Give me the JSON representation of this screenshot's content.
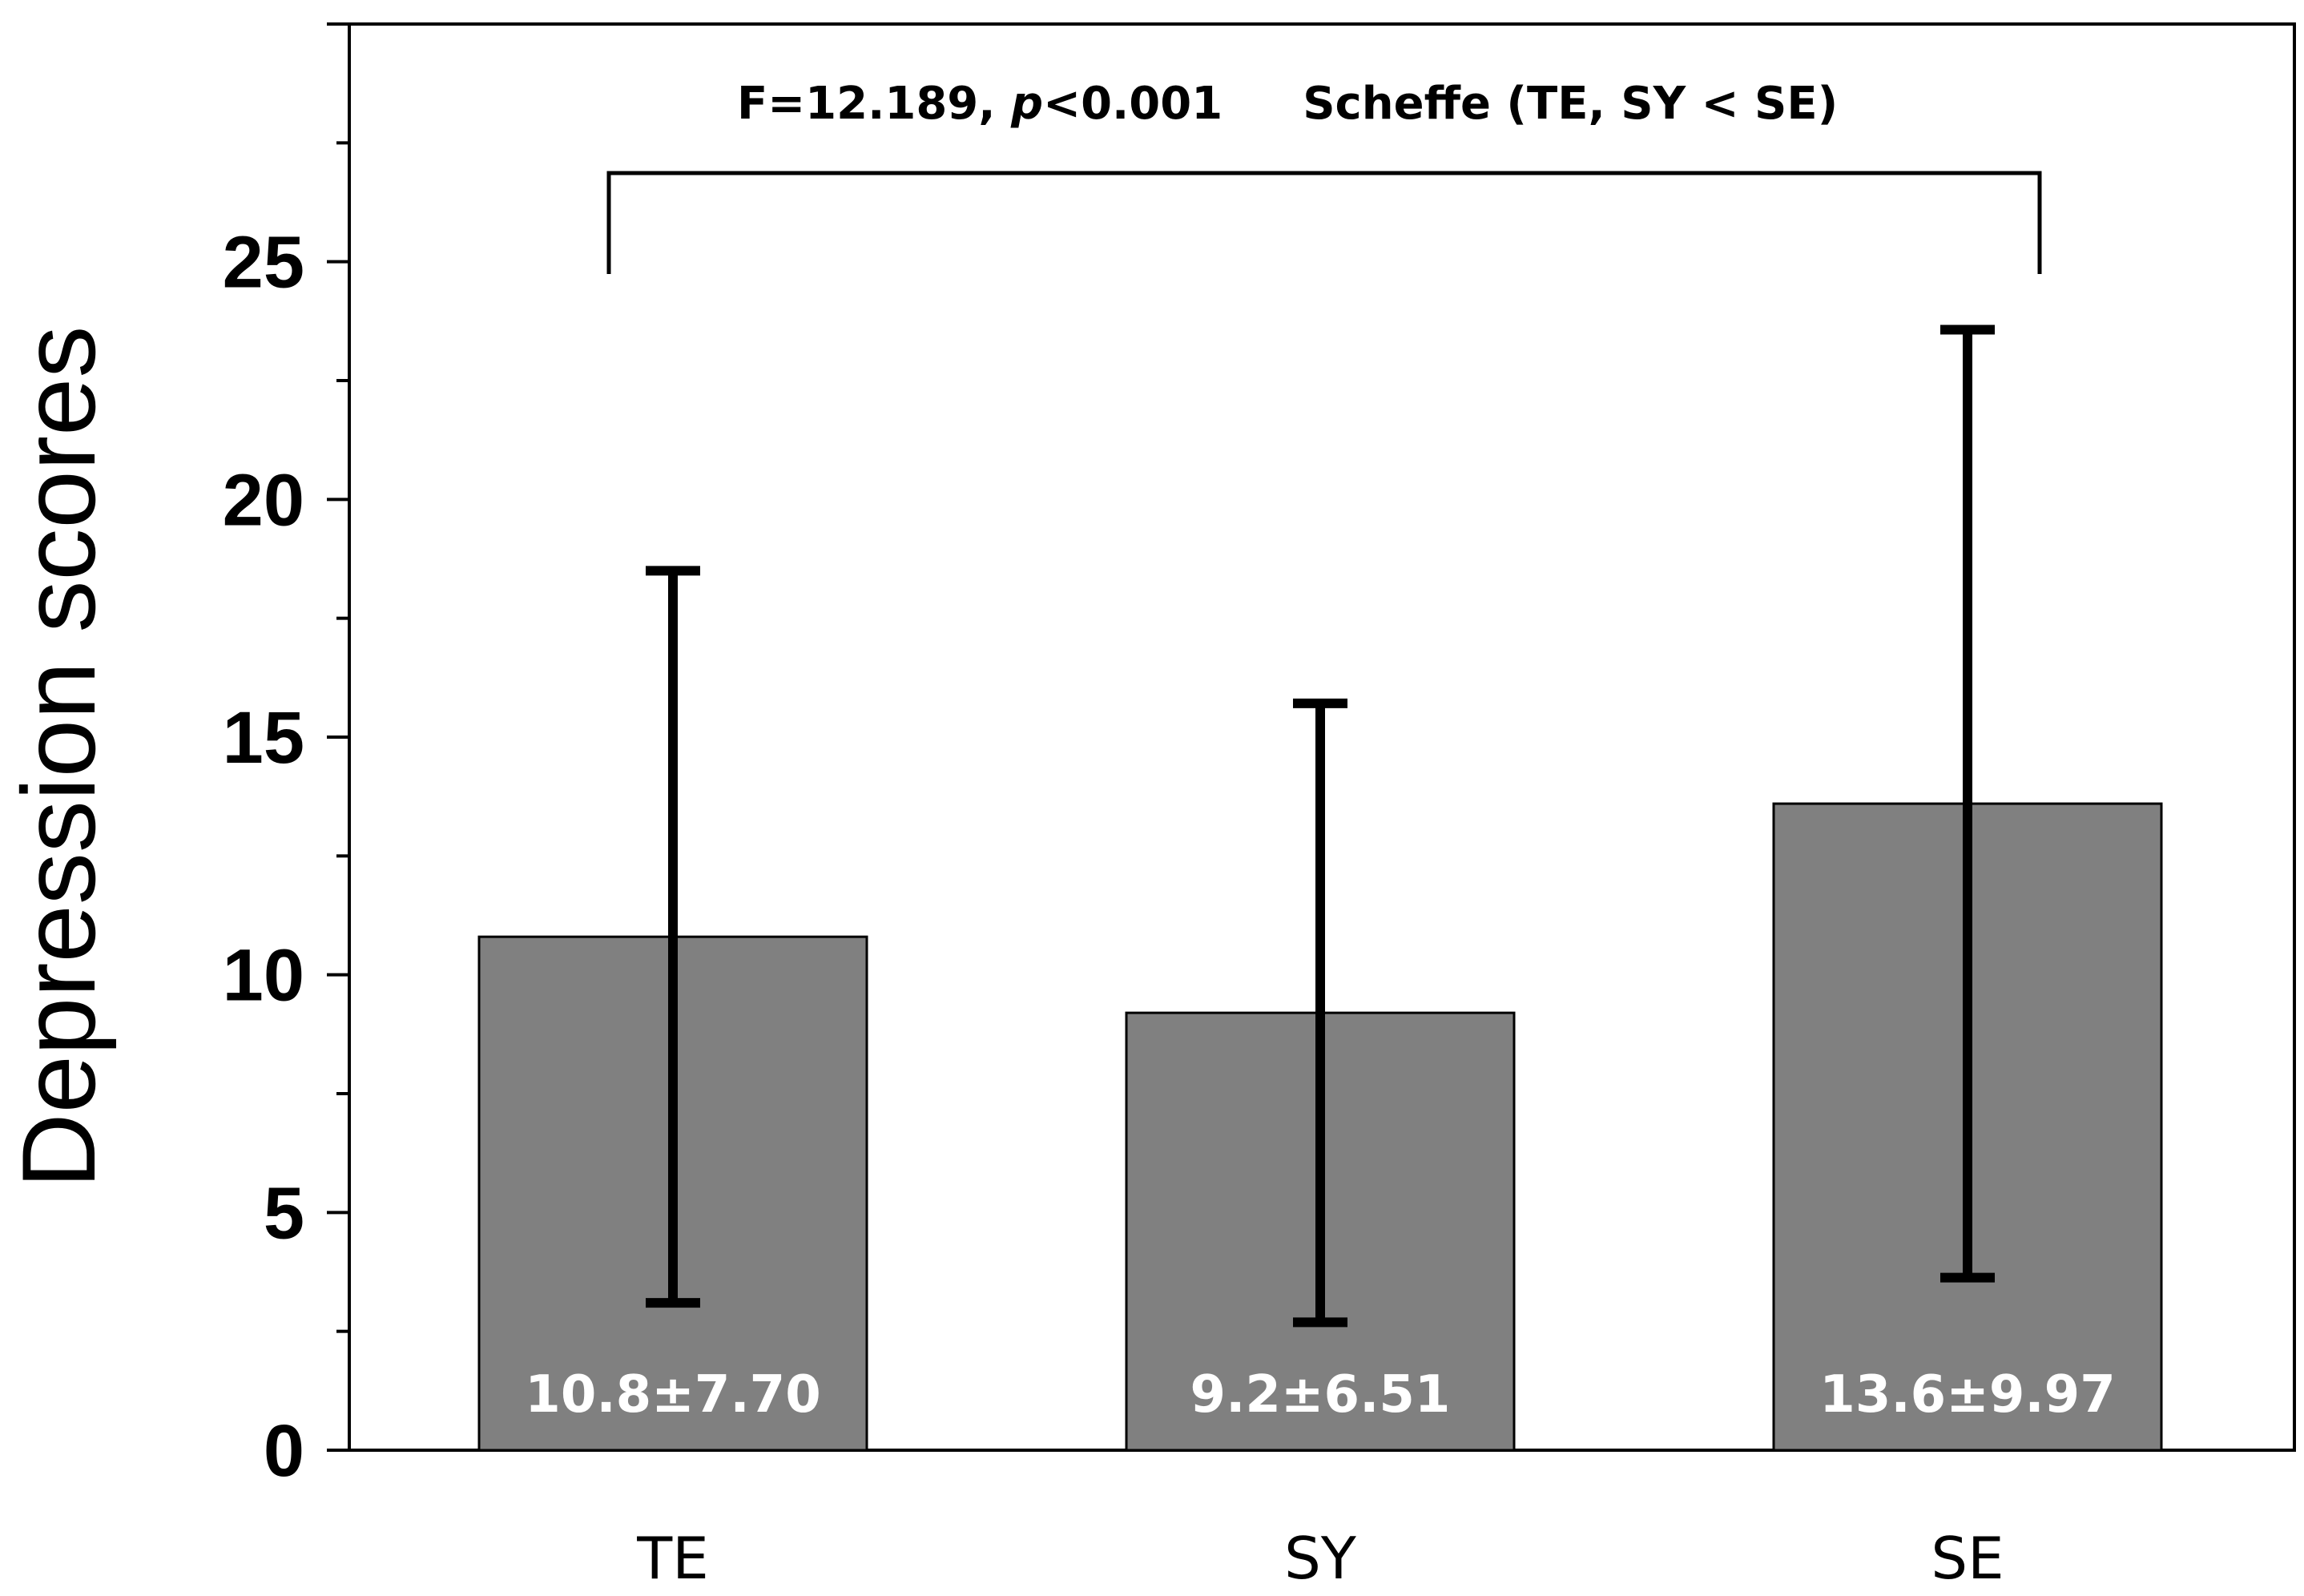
{
  "chart_data": {
    "type": "bar",
    "categories": [
      "TE",
      "SY",
      "SE"
    ],
    "values": [
      10.8,
      9.2,
      13.6
    ],
    "errors": [
      7.7,
      6.51,
      9.97
    ],
    "bar_labels": [
      "10.8±7.70",
      "9.2±6.51",
      "13.6±9.97"
    ],
    "ylabel": "Depression scores",
    "xlabel": "",
    "ylim": [
      0,
      30
    ],
    "yticks": [
      0,
      5,
      10,
      15,
      20,
      25
    ],
    "grid": false,
    "bar_color": "#808080",
    "annotation": {
      "stat_prefix": "F=12.189, ",
      "p_symbol": "p",
      "p_value": "<0.001",
      "posthoc": "Scheffe (TE, SY < SE)"
    }
  }
}
